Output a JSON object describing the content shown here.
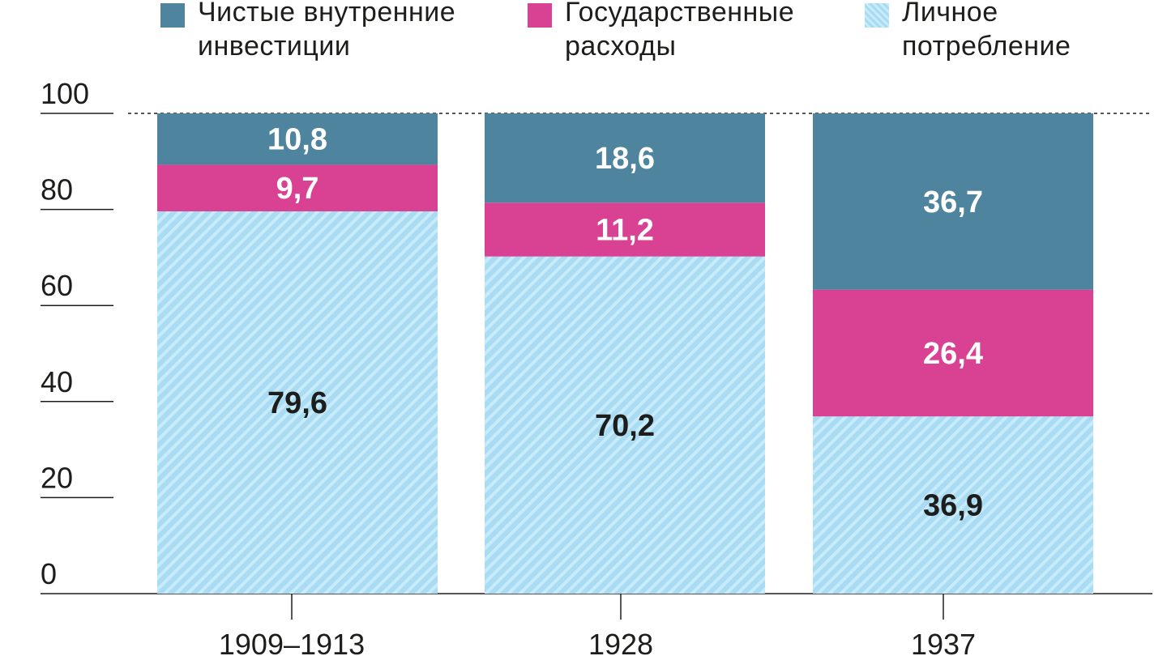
{
  "chart_data": {
    "type": "bar",
    "stacked": true,
    "categories": [
      "1909–1913",
      "1928",
      "1937"
    ],
    "series": [
      {
        "name": "Личное потребление",
        "values": [
          79.6,
          70.2,
          36.9
        ],
        "labels": [
          "79,6",
          "70,2",
          "36,9"
        ],
        "color": "#a9dcf3",
        "pattern": "hatched",
        "label_color": "#1d1d1b"
      },
      {
        "name": "Государственные расходы",
        "values": [
          9.7,
          11.2,
          26.4
        ],
        "labels": [
          "9,7",
          "11,2",
          "26,4"
        ],
        "color": "#d94193",
        "label_color": "#ffffff"
      },
      {
        "name": "Чистые внутренние инвестиции",
        "values": [
          10.8,
          18.6,
          36.7
        ],
        "labels": [
          "10,8",
          "18,6",
          "36,7"
        ],
        "color": "#4e849d",
        "label_color": "#ffffff"
      }
    ],
    "legend": [
      {
        "name": "Чистые внутренние\nинвестиции",
        "color": "#4e849d",
        "pattern": "solid"
      },
      {
        "name": "Государственные\nрасходы",
        "color": "#d94193",
        "pattern": "solid"
      },
      {
        "name": "Личное\nпотребление",
        "color": "#a9dcf3",
        "pattern": "hatched"
      }
    ],
    "legend_position": "top",
    "y_ticks": [
      0,
      20,
      40,
      60,
      80,
      100
    ],
    "y_tick_labels": [
      "0",
      "20",
      "40",
      "60",
      "80",
      "100"
    ],
    "ylim": [
      0,
      100
    ],
    "reference_line": {
      "value": 100,
      "style": "dotted"
    },
    "grid": false,
    "xlabel": "",
    "ylabel": "",
    "title": ""
  }
}
